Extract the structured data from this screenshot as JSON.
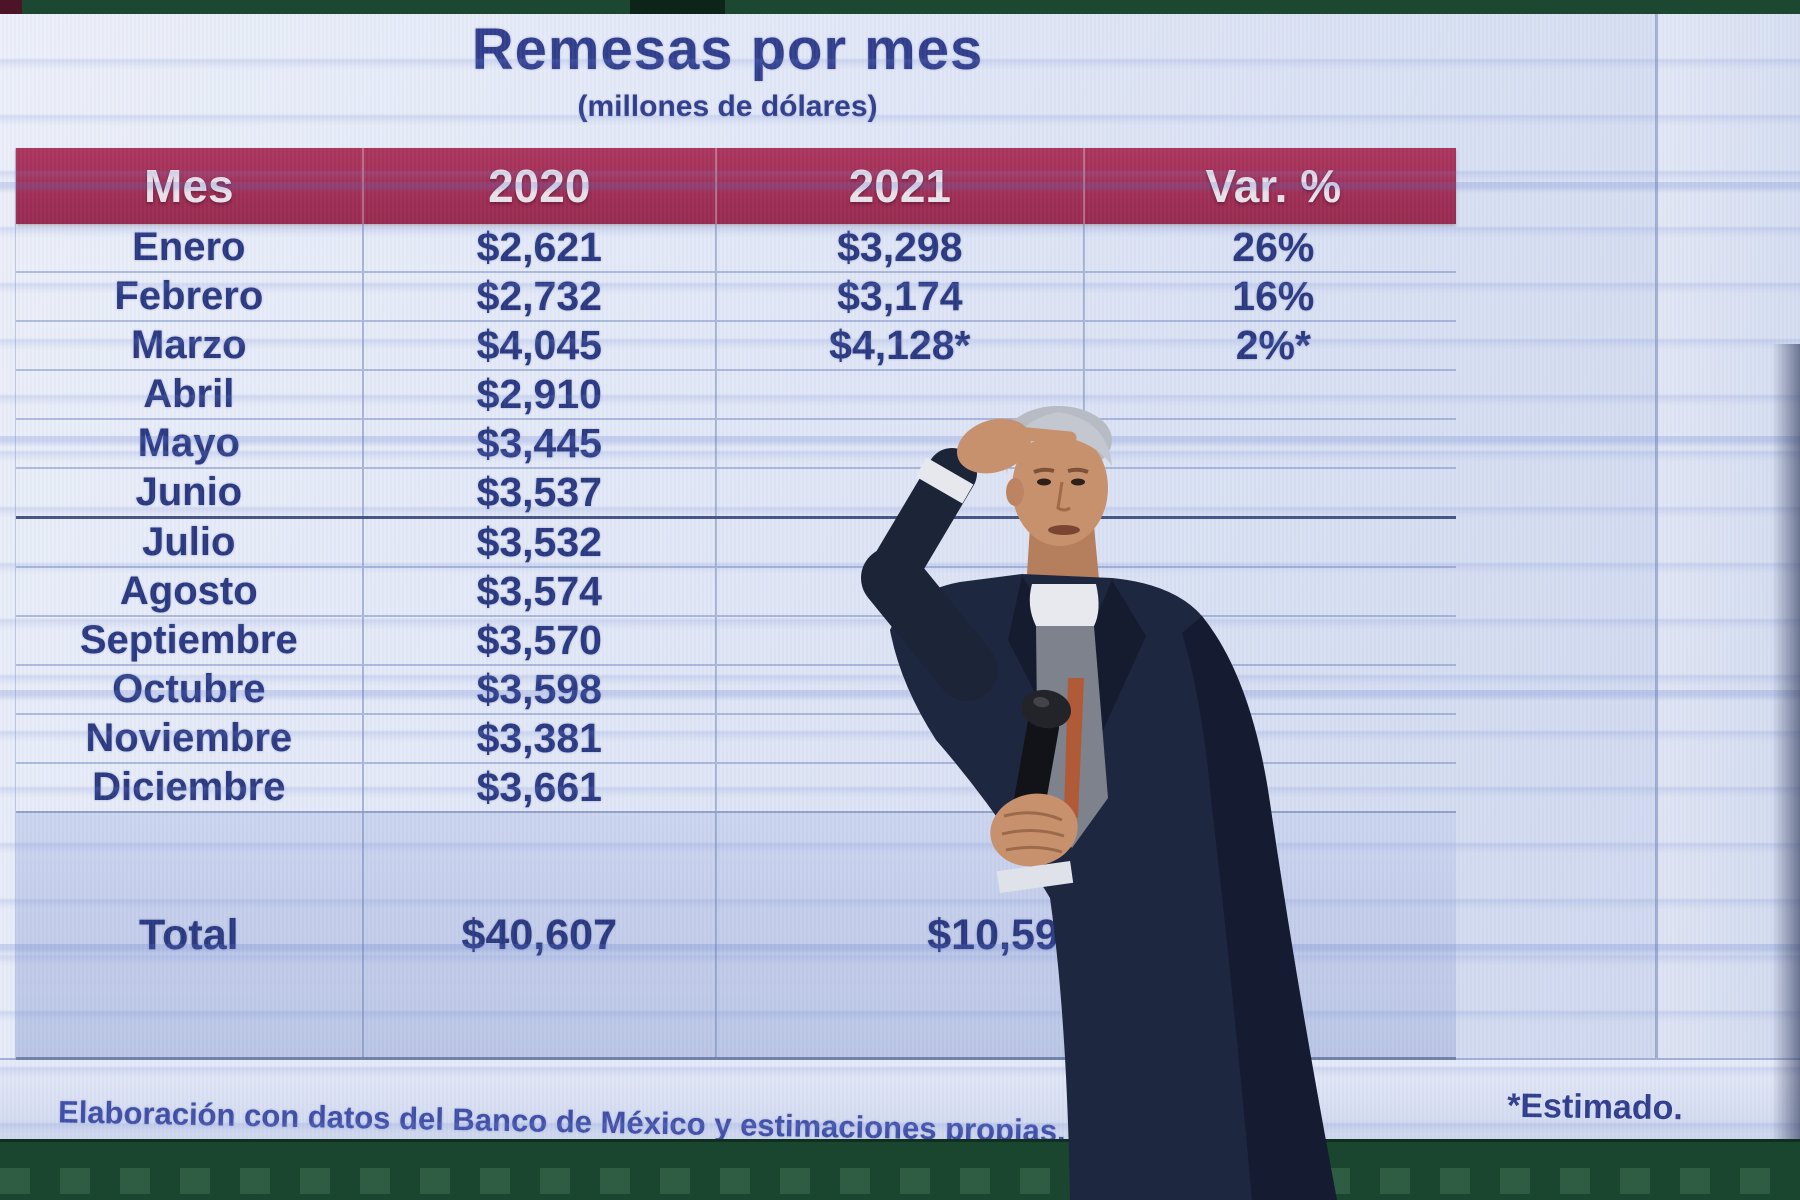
{
  "slide": {
    "title": "Remesas por mes",
    "subtitle": "(millones de dólares)",
    "footnote": "Elaboración con datos del Banco de México y estimaciones propias.",
    "estimate_note": "*Estimado."
  },
  "table": {
    "columns": [
      "Mes",
      "2020",
      "2021",
      "Var. %"
    ],
    "heavy_divider_before": "Julio",
    "rows": [
      {
        "mes": "Enero",
        "y2020": "$2,621",
        "y2021": "$3,298",
        "var": "26%"
      },
      {
        "mes": "Febrero",
        "y2020": "$2,732",
        "y2021": "$3,174",
        "var": "16%"
      },
      {
        "mes": "Marzo",
        "y2020": "$4,045",
        "y2021": "$4,128*",
        "var": "2%*"
      },
      {
        "mes": "Abril",
        "y2020": "$2,910",
        "y2021": "",
        "var": ""
      },
      {
        "mes": "Mayo",
        "y2020": "$3,445",
        "y2021": "",
        "var": ""
      },
      {
        "mes": "Junio",
        "y2020": "$3,537",
        "y2021": "",
        "var": ""
      },
      {
        "mes": "Julio",
        "y2020": "$3,532",
        "y2021": "",
        "var": ""
      },
      {
        "mes": "Agosto",
        "y2020": "$3,574",
        "y2021": "",
        "var": ""
      },
      {
        "mes": "Septiembre",
        "y2020": "$3,570",
        "y2021": "",
        "var": ""
      },
      {
        "mes": "Octubre",
        "y2020": "$3,598",
        "y2021": "",
        "var": ""
      },
      {
        "mes": "Noviembre",
        "y2020": "$3,381",
        "y2021": "",
        "var": ""
      },
      {
        "mes": "Diciembre",
        "y2020": "$3,661",
        "y2021": "",
        "var": ""
      }
    ],
    "total": {
      "mes": "Total",
      "y2020": "$40,607",
      "y2021": "$10,599",
      "var": ""
    }
  },
  "chart_data": {
    "type": "table",
    "title": "Remesas por mes",
    "subtitle": "(millones de dólares)",
    "columns": [
      "Mes",
      "2020",
      "2021",
      "Var. %"
    ],
    "categories": [
      "Enero",
      "Febrero",
      "Marzo",
      "Abril",
      "Mayo",
      "Junio",
      "Julio",
      "Agosto",
      "Septiembre",
      "Octubre",
      "Noviembre",
      "Diciembre"
    ],
    "series": [
      {
        "name": "2020",
        "values": [
          2621,
          2732,
          4045,
          2910,
          3445,
          3537,
          3532,
          3574,
          3570,
          3598,
          3381,
          3661
        ],
        "total": 40607
      },
      {
        "name": "2021",
        "values": [
          3298,
          3174,
          4128,
          null,
          null,
          null,
          null,
          null,
          null,
          null,
          null,
          null
        ],
        "total": 10599,
        "note": "Marzo 2021 es estimado (*)"
      },
      {
        "name": "Var. %",
        "values": [
          26,
          16,
          2,
          null,
          null,
          null,
          null,
          null,
          null,
          null,
          null,
          null
        ]
      }
    ],
    "annotations": [
      "*Estimado.",
      "Elaboración con datos del Banco de México y estimaciones propias."
    ]
  },
  "colors": {
    "header_bg": "#a02d52",
    "text_navy": "#26357e",
    "title_navy": "#2c3a8a",
    "screen_bg": "#dce3f4",
    "total_row_bg": "#c3cde9",
    "stage_green": "#1a452f"
  },
  "scene": {
    "presenter": "hombre de traje oscuro con micrófono frente a la pantalla"
  }
}
